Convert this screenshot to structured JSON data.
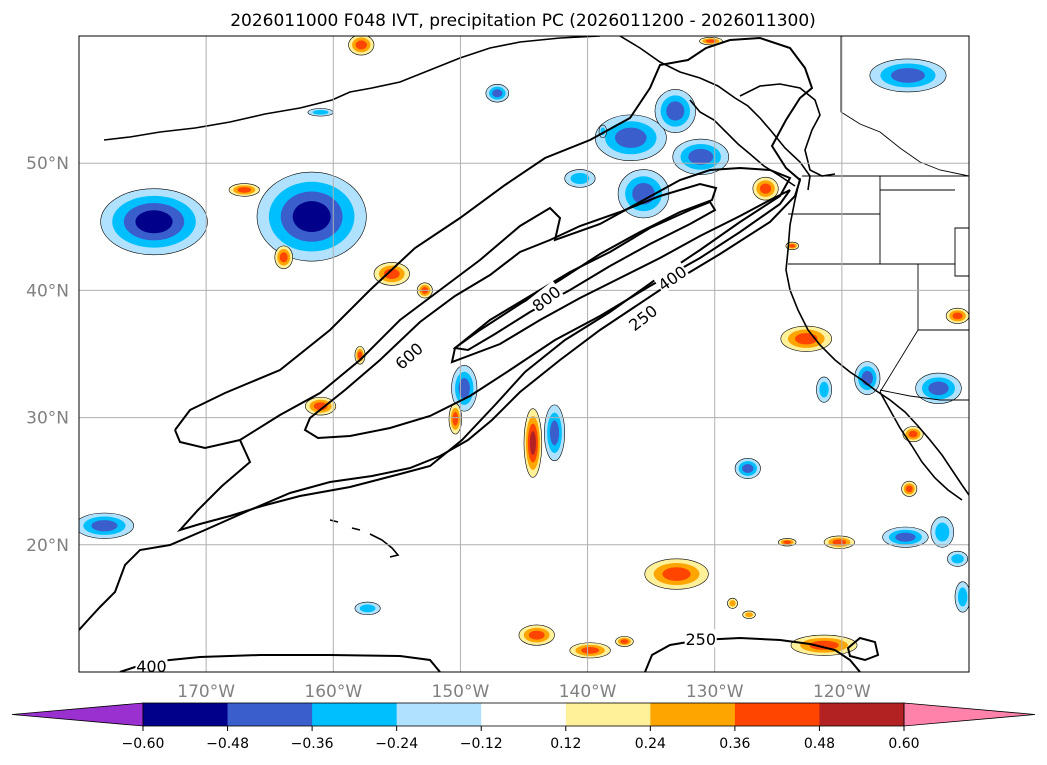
{
  "chart_data": {
    "type": "contour_map",
    "title": "2026011000 F048 IVT, precipitation PC (2026011200 - 2026011300)",
    "lon_range": [
      -180,
      -110
    ],
    "lat_range": [
      10,
      60
    ],
    "lat_ticks": [
      {
        "value": 20,
        "label": "20°N"
      },
      {
        "value": 30,
        "label": "30°N"
      },
      {
        "value": 40,
        "label": "40°N"
      },
      {
        "value": 50,
        "label": "50°N"
      }
    ],
    "lon_ticks": [
      {
        "value": -170,
        "label": "170°W"
      },
      {
        "value": -160,
        "label": "160°W"
      },
      {
        "value": -150,
        "label": "150°W"
      },
      {
        "value": -140,
        "label": "140°W"
      },
      {
        "value": -130,
        "label": "130°W"
      },
      {
        "value": -120,
        "label": "120°W"
      }
    ],
    "ivt_contour_levels": [
      250,
      400,
      600,
      800
    ],
    "contour_labels": [
      {
        "text": "600",
        "lon": -154.0,
        "lat": 34.8,
        "angle": -42
      },
      {
        "text": "800",
        "lon": -143.2,
        "lat": 39.3,
        "angle": -38
      },
      {
        "text": "400",
        "lon": -133.3,
        "lat": 40.9,
        "angle": -35
      },
      {
        "text": "250",
        "lon": -135.6,
        "lat": 37.8,
        "angle": -38
      },
      {
        "text": "250",
        "lon": -131.1,
        "lat": 12.5,
        "angle": 0
      },
      {
        "text": "400",
        "lon": -174.3,
        "lat": 10.4,
        "angle": 0
      }
    ],
    "colorbar": {
      "levels": [
        -0.6,
        -0.48,
        -0.36,
        -0.24,
        -0.12,
        0.12,
        0.24,
        0.36,
        0.48,
        0.6
      ],
      "tick_labels": [
        "−0.60",
        "−0.48",
        "−0.36",
        "−0.24",
        "−0.12",
        "0.12",
        "0.24",
        "0.36",
        "0.48",
        "0.60"
      ],
      "colors": [
        "#9b30d0",
        "#00008b",
        "#3a5fcd",
        "#00bfff",
        "#b0e2ff",
        "#ffffff",
        "#fff09a",
        "#ffa500",
        "#ff4500",
        "#b22222",
        "#ff82ab"
      ],
      "extend": "both"
    },
    "precip_regions": [
      {
        "lon": -174.1,
        "lat": 45.4,
        "rx": 4.2,
        "ry": 2.6,
        "value": -0.55
      },
      {
        "lon": -161.7,
        "lat": 45.8,
        "rx": 4.3,
        "ry": 3.5,
        "value": -0.52
      },
      {
        "lon": -147.1,
        "lat": 55.5,
        "rx": 0.9,
        "ry": 0.7,
        "value": -0.36
      },
      {
        "lon": -140.6,
        "lat": 48.8,
        "rx": 1.2,
        "ry": 0.7,
        "value": -0.3
      },
      {
        "lon": -136.6,
        "lat": 52.0,
        "rx": 2.8,
        "ry": 1.8,
        "value": -0.4
      },
      {
        "lon": -133.1,
        "lat": 54.1,
        "rx": 1.6,
        "ry": 1.7,
        "value": -0.42
      },
      {
        "lon": -131.1,
        "lat": 50.5,
        "rx": 2.2,
        "ry": 1.4,
        "value": -0.36
      },
      {
        "lon": -135.6,
        "lat": 47.6,
        "rx": 2.0,
        "ry": 1.9,
        "value": -0.36
      },
      {
        "lon": -114.8,
        "lat": 56.9,
        "rx": 3.0,
        "ry": 1.3,
        "value": -0.42
      },
      {
        "lon": -118.0,
        "lat": 33.1,
        "rx": 1.0,
        "ry": 1.3,
        "value": -0.36
      },
      {
        "lon": -121.4,
        "lat": 32.2,
        "rx": 0.6,
        "ry": 1.0,
        "value": -0.3
      },
      {
        "lon": -112.4,
        "lat": 32.3,
        "rx": 1.8,
        "ry": 1.2,
        "value": -0.44
      },
      {
        "lon": -127.4,
        "lat": 26.0,
        "rx": 1.0,
        "ry": 0.8,
        "value": -0.4
      },
      {
        "lon": -115.0,
        "lat": 20.6,
        "rx": 1.8,
        "ry": 0.8,
        "value": -0.44
      },
      {
        "lon": -112.1,
        "lat": 21.0,
        "rx": 0.9,
        "ry": 1.2,
        "value": -0.34
      },
      {
        "lon": -110.5,
        "lat": 15.9,
        "rx": 0.6,
        "ry": 1.2,
        "value": -0.34
      },
      {
        "lon": -110.9,
        "lat": 18.9,
        "rx": 0.8,
        "ry": 0.6,
        "value": -0.3
      },
      {
        "lon": -178.0,
        "lat": 21.5,
        "rx": 2.3,
        "ry": 1.0,
        "value": -0.46
      },
      {
        "lon": -142.6,
        "lat": 28.8,
        "rx": 0.8,
        "ry": 2.2,
        "value": -0.4
      },
      {
        "lon": -149.7,
        "lat": 32.3,
        "rx": 1.0,
        "ry": 1.8,
        "value": -0.36
      },
      {
        "lon": -157.3,
        "lat": 15.0,
        "rx": 1.0,
        "ry": 0.5,
        "value": -0.3
      },
      {
        "lon": -161.0,
        "lat": 54.0,
        "rx": 1.0,
        "ry": 0.3,
        "value": -0.24
      },
      {
        "lon": -138.8,
        "lat": 52.5,
        "rx": 0.3,
        "ry": 0.5,
        "value": -0.24
      },
      {
        "lon": -155.4,
        "lat": 41.3,
        "rx": 1.4,
        "ry": 0.9,
        "value": 0.42
      },
      {
        "lon": -152.8,
        "lat": 40.0,
        "rx": 0.6,
        "ry": 0.6,
        "value": 0.38
      },
      {
        "lon": -167.0,
        "lat": 47.9,
        "rx": 1.2,
        "ry": 0.5,
        "value": 0.4
      },
      {
        "lon": -163.9,
        "lat": 42.6,
        "rx": 0.7,
        "ry": 0.9,
        "value": 0.38
      },
      {
        "lon": -157.9,
        "lat": 34.9,
        "rx": 0.4,
        "ry": 0.7,
        "value": 0.38
      },
      {
        "lon": -161.0,
        "lat": 30.9,
        "rx": 1.2,
        "ry": 0.7,
        "value": 0.4
      },
      {
        "lon": -150.4,
        "lat": 29.9,
        "rx": 0.5,
        "ry": 1.2,
        "value": 0.42
      },
      {
        "lon": -144.3,
        "lat": 28.0,
        "rx": 0.7,
        "ry": 2.7,
        "value": 0.48
      },
      {
        "lon": -122.8,
        "lat": 36.2,
        "rx": 2.0,
        "ry": 1.0,
        "value": 0.42
      },
      {
        "lon": -133.0,
        "lat": 17.7,
        "rx": 2.5,
        "ry": 1.2,
        "value": 0.44
      },
      {
        "lon": -144.0,
        "lat": 12.9,
        "rx": 1.4,
        "ry": 0.8,
        "value": 0.4
      },
      {
        "lon": -139.8,
        "lat": 11.7,
        "rx": 1.6,
        "ry": 0.6,
        "value": 0.4
      },
      {
        "lon": -137.1,
        "lat": 12.4,
        "rx": 0.7,
        "ry": 0.4,
        "value": 0.38
      },
      {
        "lon": -121.4,
        "lat": 12.1,
        "rx": 2.6,
        "ry": 0.8,
        "value": 0.46
      },
      {
        "lon": -120.2,
        "lat": 20.2,
        "rx": 1.2,
        "ry": 0.5,
        "value": 0.4
      },
      {
        "lon": -124.3,
        "lat": 20.2,
        "rx": 0.7,
        "ry": 0.3,
        "value": 0.36
      },
      {
        "lon": -114.7,
        "lat": 24.4,
        "rx": 0.6,
        "ry": 0.6,
        "value": 0.4
      },
      {
        "lon": -114.4,
        "lat": 28.7,
        "rx": 0.8,
        "ry": 0.6,
        "value": 0.4
      },
      {
        "lon": -110.9,
        "lat": 38.0,
        "rx": 0.9,
        "ry": 0.6,
        "value": 0.42
      },
      {
        "lon": -123.9,
        "lat": 43.5,
        "rx": 0.5,
        "ry": 0.3,
        "value": 0.36
      },
      {
        "lon": -130.3,
        "lat": 59.6,
        "rx": 0.9,
        "ry": 0.3,
        "value": 0.36
      },
      {
        "lon": -157.8,
        "lat": 59.3,
        "rx": 1.0,
        "ry": 0.8,
        "value": 0.42
      },
      {
        "lon": -126.0,
        "lat": 48.0,
        "rx": 1.0,
        "ry": 0.9,
        "value": 0.4
      },
      {
        "lon": -127.3,
        "lat": 14.5,
        "rx": 0.5,
        "ry": 0.3,
        "value": 0.34
      },
      {
        "lon": -128.6,
        "lat": 15.4,
        "rx": 0.4,
        "ry": 0.4,
        "value": 0.3
      }
    ]
  }
}
